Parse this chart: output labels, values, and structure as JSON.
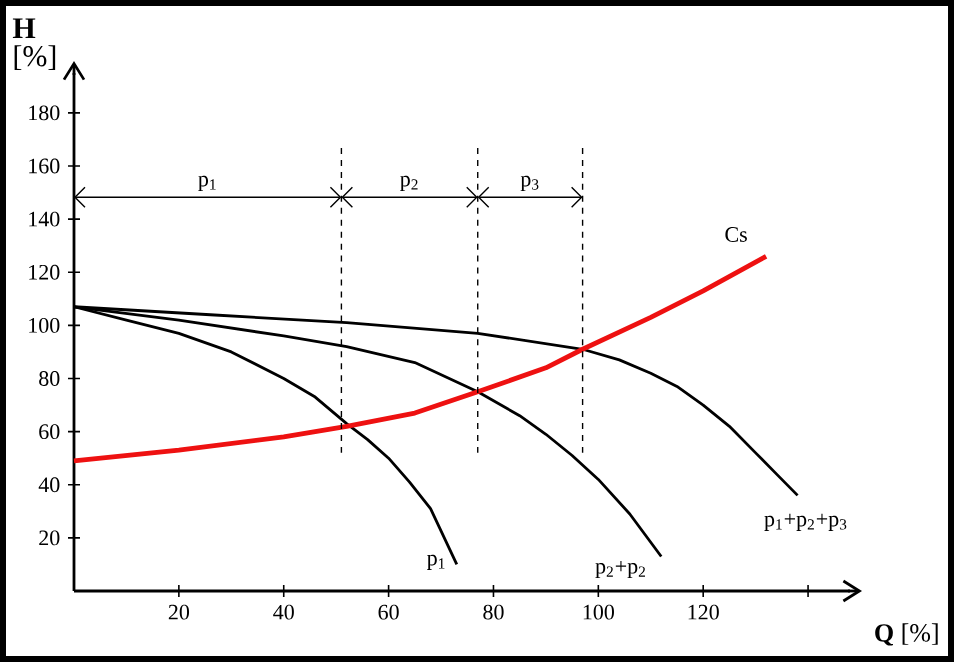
{
  "chart_data": {
    "type": "line",
    "xlabel": "**Q** [%]",
    "ylabel": "**H** [%]",
    "xlim": [
      0,
      148
    ],
    "ylim": [
      0,
      195
    ],
    "xticks": [
      20,
      40,
      60,
      80,
      100,
      120,
      {
        "value": 140,
        "label": null
      }
    ],
    "yticks": [
      20,
      40,
      60,
      80,
      100,
      120,
      140,
      160,
      180
    ],
    "grid": false,
    "marker": "none",
    "line_style": "solid",
    "series": [
      {
        "name": "p$_{1}$",
        "color": "#000000",
        "x": [
          0,
          10,
          20,
          30,
          40,
          46,
          52,
          56,
          60,
          64,
          68,
          73
        ],
        "values": [
          107,
          102,
          97,
          90,
          80,
          73,
          63,
          57,
          50,
          41,
          31,
          10
        ]
      },
      {
        "name": "p$_{2}$+p$_{2}$",
        "color": "#000000",
        "x": [
          0,
          20,
          40,
          52,
          65,
          77,
          85,
          90,
          95,
          100,
          106,
          112
        ],
        "values": [
          107,
          102,
          96,
          92,
          86,
          75,
          66,
          59,
          51,
          42,
          29,
          13
        ]
      },
      {
        "name": "p$_{1}$+p$_{2}$+p$_{3}$",
        "color": "#000000",
        "x": [
          0,
          26,
          52,
          77,
          97,
          104,
          110,
          115,
          120,
          125,
          130,
          134,
          138
        ],
        "values": [
          107,
          104,
          101,
          97,
          91,
          87,
          82,
          77,
          70,
          62,
          52,
          44,
          36
        ]
      },
      {
        "name": "Cs",
        "color": "#ee1111",
        "x": [
          0,
          20,
          40,
          52,
          65,
          77,
          90,
          97,
          110,
          120,
          132
        ],
        "values": [
          49,
          53,
          58,
          62,
          67,
          75,
          84,
          91,
          103,
          113,
          126
        ]
      }
    ],
    "ref_lines": [
      {
        "axis": "x",
        "value": 51,
        "line_style": "dashed"
      },
      {
        "axis": "x",
        "value": 77,
        "line_style": "dashed"
      },
      {
        "axis": "x",
        "value": 97,
        "line_style": "dashed"
      }
    ],
    "annotations": [
      "p$_{1}$",
      "p$_{2}$",
      "p$_{3}$"
    ]
  }
}
